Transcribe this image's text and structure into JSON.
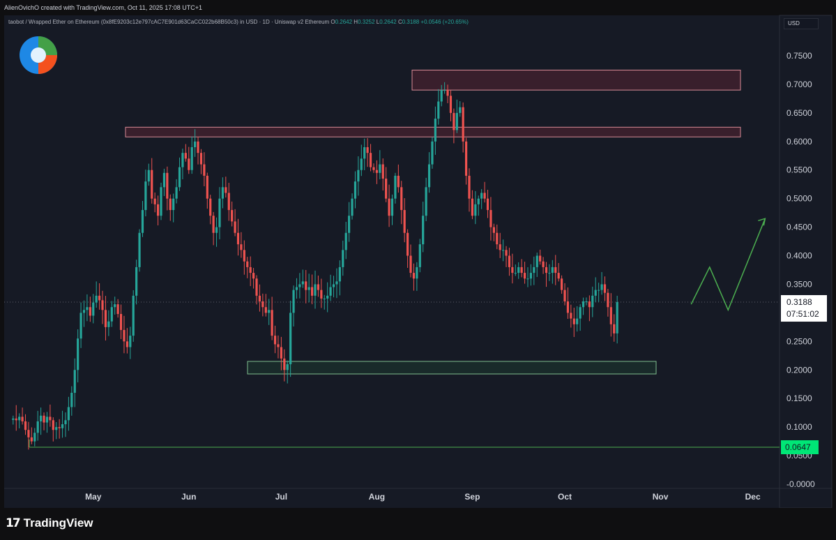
{
  "header": {
    "attribution": "AlienOvichO created with TradingView.com, Oct 11, 2025 17:08 UTC+1"
  },
  "legend": {
    "symbol": "taobot / Wrapped Ether on Ethereum (0x8fE9203c12e797cAC7E901d63CaCC022b68B50c3) in USD · 1D · Uniswap v2 Ethereum",
    "o_label": "O",
    "o_value": "0.2642",
    "h_label": "H",
    "h_value": "0.3252",
    "l_label": "L",
    "l_value": "0.2642",
    "c_label": "C",
    "c_value": "0.3188",
    "change": "+0.0546 (+20.65%)"
  },
  "axis_currency": "USD",
  "price_badge": {
    "price": "0.3188",
    "countdown": "07:51:02"
  },
  "level_badge": "0.0647",
  "footer": {
    "logo_text": "TradingView",
    "logo_mark": "17"
  },
  "colors": {
    "up": "#26a69a",
    "down": "#ef5350",
    "background": "#161a25",
    "resistance_zone": "#7a2b3a",
    "support_zone": "#1f4a34",
    "support_line": "#4caf50",
    "projection_arrow": "#4caf50"
  },
  "chart_data": {
    "type": "candlestick",
    "title": "",
    "xlabel": "",
    "ylabel": "",
    "ylim": [
      -0.01,
      0.79
    ],
    "y_ticks": [
      "0.7500",
      "0.7000",
      "0.6500",
      "0.6000",
      "0.5500",
      "0.5000",
      "0.4500",
      "0.4000",
      "0.3500",
      "0.3000",
      "0.2500",
      "0.2000",
      "0.1500",
      "0.1000",
      "0.0500",
      "-0.0000"
    ],
    "x_ticks": [
      {
        "label": "May",
        "day": 28
      },
      {
        "label": "Jun",
        "day": 59
      },
      {
        "label": "Jul",
        "day": 89
      },
      {
        "label": "Aug",
        "day": 120
      },
      {
        "label": "Sep",
        "day": 151
      },
      {
        "label": "Oct",
        "day": 181
      },
      {
        "label": "Nov",
        "day": 212
      },
      {
        "label": "Dec",
        "day": 242
      }
    ],
    "close_series": [
      0.115,
      0.112,
      0.118,
      0.11,
      0.095,
      0.082,
      0.075,
      0.09,
      0.11,
      0.12,
      0.108,
      0.118,
      0.112,
      0.095,
      0.1,
      0.098,
      0.105,
      0.112,
      0.135,
      0.16,
      0.2,
      0.255,
      0.3,
      0.305,
      0.31,
      0.295,
      0.318,
      0.33,
      0.322,
      0.305,
      0.275,
      0.285,
      0.31,
      0.315,
      0.298,
      0.27,
      0.25,
      0.24,
      0.26,
      0.33,
      0.38,
      0.44,
      0.48,
      0.53,
      0.55,
      0.5,
      0.49,
      0.47,
      0.52,
      0.545,
      0.5,
      0.48,
      0.5,
      0.52,
      0.555,
      0.58,
      0.57,
      0.55,
      0.59,
      0.6,
      0.58,
      0.56,
      0.54,
      0.5,
      0.47,
      0.44,
      0.45,
      0.5,
      0.52,
      0.51,
      0.48,
      0.46,
      0.44,
      0.42,
      0.41,
      0.39,
      0.38,
      0.37,
      0.36,
      0.33,
      0.32,
      0.31,
      0.3,
      0.305,
      0.26,
      0.245,
      0.24,
      0.22,
      0.2,
      0.21,
      0.3,
      0.34,
      0.345,
      0.35,
      0.355,
      0.34,
      0.345,
      0.33,
      0.35,
      0.34,
      0.325,
      0.325,
      0.33,
      0.345,
      0.35,
      0.355,
      0.38,
      0.41,
      0.44,
      0.47,
      0.5,
      0.53,
      0.55,
      0.57,
      0.59,
      0.58,
      0.555,
      0.55,
      0.545,
      0.56,
      0.535,
      0.5,
      0.47,
      0.5,
      0.54,
      0.52,
      0.48,
      0.44,
      0.4,
      0.37,
      0.36,
      0.38,
      0.42,
      0.47,
      0.52,
      0.56,
      0.6,
      0.64,
      0.67,
      0.69,
      0.69,
      0.68,
      0.65,
      0.62,
      0.65,
      0.66,
      0.6,
      0.54,
      0.5,
      0.47,
      0.49,
      0.5,
      0.51,
      0.5,
      0.48,
      0.45,
      0.44,
      0.42,
      0.41,
      0.41,
      0.4,
      0.38,
      0.37,
      0.37,
      0.38,
      0.37,
      0.36,
      0.36,
      0.37,
      0.38,
      0.4,
      0.39,
      0.38,
      0.37,
      0.37,
      0.38,
      0.37,
      0.36,
      0.34,
      0.32,
      0.3,
      0.29,
      0.28,
      0.29,
      0.31,
      0.32,
      0.32,
      0.31,
      0.33,
      0.34,
      0.34,
      0.35,
      0.335,
      0.31,
      0.28,
      0.264,
      0.3188
    ],
    "levels": [
      {
        "name": "lower-support-line",
        "value": 0.0647
      }
    ],
    "zones": [
      {
        "name": "top-resistance",
        "y_top": 0.725,
        "y_bottom": 0.69
      },
      {
        "name": "mid-resistance",
        "y_top": 0.625,
        "y_bottom": 0.608
      },
      {
        "name": "support",
        "y_top": 0.215,
        "y_bottom": 0.193
      }
    ],
    "projection": [
      {
        "day": 222,
        "value": 0.315
      },
      {
        "day": 228,
        "value": 0.38
      },
      {
        "day": 234,
        "value": 0.305
      },
      {
        "day": 246,
        "value": 0.465
      }
    ]
  }
}
